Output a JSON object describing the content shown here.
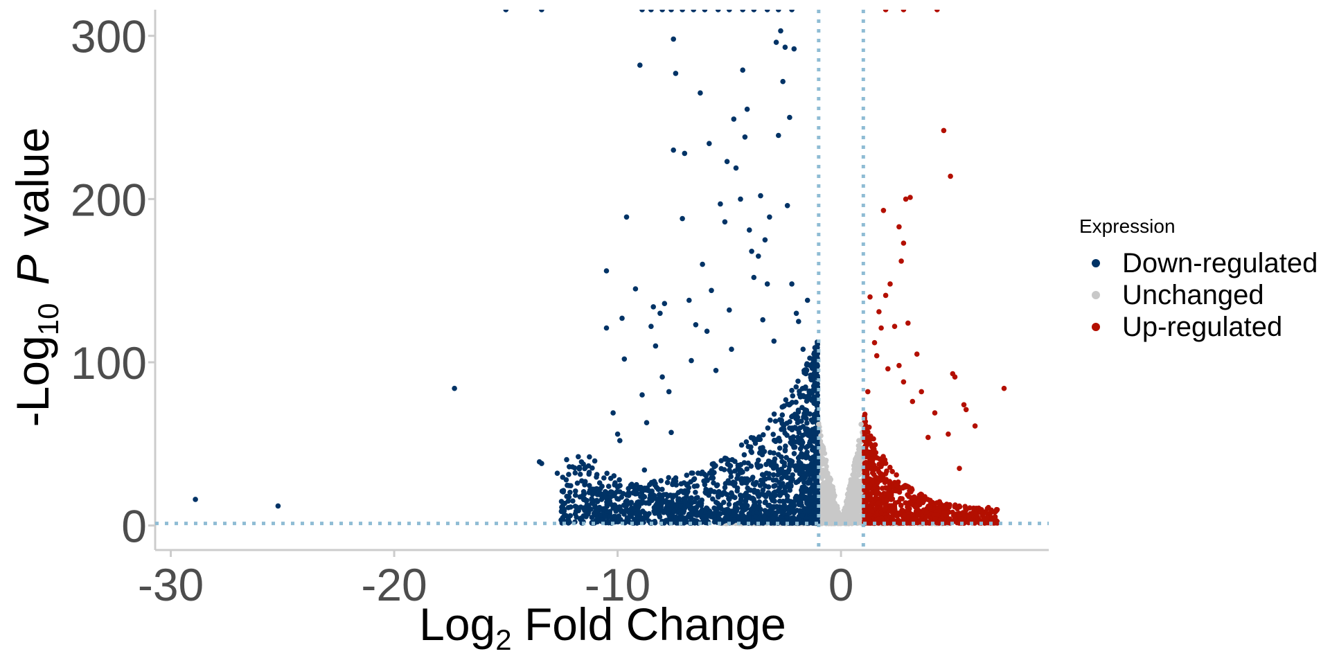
{
  "chart_data": {
    "type": "scatter",
    "title": "",
    "xlabel": "Log2 Fold Change",
    "xlabel_parts": [
      "Log",
      "2",
      " Fold Change"
    ],
    "ylabel": "-Log10 P value",
    "ylabel_parts": [
      "-Log",
      "10",
      "P",
      "value"
    ],
    "xlim": [
      -30.7,
      9.3
    ],
    "ylim": [
      -15,
      316
    ],
    "x_ticks": [
      -30,
      -20,
      -10,
      0
    ],
    "x_tick_labels": [
      "-30",
      "-20",
      "-10",
      "0"
    ],
    "y_ticks": [
      0,
      100,
      200,
      300
    ],
    "y_tick_labels": [
      "0",
      "100",
      "200",
      "300"
    ],
    "grid": false,
    "legend_position": "right",
    "legend": {
      "title": "Expression",
      "entries": [
        "Down-regulated",
        "Unchanged",
        "Up-regulated"
      ]
    },
    "thresholds": {
      "log2fc": [
        -1,
        1
      ],
      "neg_log10_p": 1.3,
      "line_color": "#8fbcd4",
      "line_style": "dotted"
    },
    "colors": {
      "Down-regulated": "#003366",
      "Unchanged": "#c8c8c8",
      "Up-regulated": "#b30f00"
    },
    "series": [
      {
        "name": "Down-regulated",
        "points": [
          [
            -28.9,
            16
          ],
          [
            -25.2,
            12
          ],
          [
            -17.3,
            84
          ],
          [
            -13.5,
            39
          ],
          [
            -13.4,
            38
          ],
          [
            -12.7,
            32
          ],
          [
            -12.3,
            28
          ],
          [
            -11.8,
            26
          ],
          [
            -11.4,
            15
          ],
          [
            -11.2,
            10
          ],
          [
            -10.8,
            20
          ],
          [
            -10.4,
            24
          ],
          [
            -10.2,
            69
          ],
          [
            -10.0,
            56
          ],
          [
            -9.9,
            52
          ],
          [
            -10.5,
            121
          ],
          [
            -10.5,
            156
          ],
          [
            -9.8,
            127
          ],
          [
            -9.7,
            102
          ],
          [
            -9.6,
            189
          ],
          [
            -9.2,
            145
          ],
          [
            -9.0,
            282
          ],
          [
            -8.9,
            80
          ],
          [
            -8.8,
            34
          ],
          [
            -8.7,
            63
          ],
          [
            -8.5,
            122
          ],
          [
            -8.4,
            134
          ],
          [
            -8.3,
            110
          ],
          [
            -8.1,
            130
          ],
          [
            -8.0,
            91
          ],
          [
            -7.9,
            136
          ],
          [
            -7.7,
            82
          ],
          [
            -7.6,
            57
          ],
          [
            -7.5,
            230
          ],
          [
            -7.5,
            298
          ],
          [
            -7.4,
            277
          ],
          [
            -7.1,
            188
          ],
          [
            -7.0,
            228
          ],
          [
            -6.8,
            138
          ],
          [
            -6.7,
            101
          ],
          [
            -6.5,
            123
          ],
          [
            -6.3,
            265
          ],
          [
            -6.2,
            160
          ],
          [
            -6.0,
            119
          ],
          [
            -5.9,
            234
          ],
          [
            -5.8,
            144
          ],
          [
            -5.6,
            95
          ],
          [
            -5.4,
            197
          ],
          [
            -5.2,
            186
          ],
          [
            -5.1,
            223
          ],
          [
            -5.0,
            132
          ],
          [
            -4.9,
            108
          ],
          [
            -4.8,
            249
          ],
          [
            -4.7,
            219
          ],
          [
            -4.5,
            200
          ],
          [
            -4.4,
            279
          ],
          [
            -4.3,
            238
          ],
          [
            -4.2,
            255
          ],
          [
            -4.1,
            181
          ],
          [
            -4.0,
            168
          ],
          [
            -3.9,
            152
          ],
          [
            -3.7,
            165
          ],
          [
            -3.6,
            202
          ],
          [
            -3.5,
            126
          ],
          [
            -3.4,
            175
          ],
          [
            -3.3,
            148
          ],
          [
            -3.2,
            189
          ],
          [
            -3.0,
            113
          ],
          [
            -2.9,
            296
          ],
          [
            -2.8,
            239
          ],
          [
            -2.7,
            303
          ],
          [
            -2.6,
            272
          ],
          [
            -2.5,
            293
          ],
          [
            -2.4,
            196
          ],
          [
            -2.3,
            250
          ],
          [
            -2.2,
            148
          ],
          [
            -2.1,
            292
          ],
          [
            -2.0,
            130
          ],
          [
            -1.9,
            125
          ],
          [
            -1.7,
            108
          ],
          [
            -1.5,
            138
          ],
          [
            -1.3,
            81
          ],
          [
            -15.0,
            316
          ],
          [
            -13.4,
            316
          ],
          [
            -8.9,
            316
          ],
          [
            -8.5,
            316
          ],
          [
            -8.0,
            316
          ],
          [
            -7.6,
            316
          ],
          [
            -7.1,
            316
          ],
          [
            -6.6,
            316
          ],
          [
            -6.1,
            316
          ],
          [
            -5.5,
            316
          ],
          [
            -5.0,
            316
          ],
          [
            -4.4,
            316
          ],
          [
            -3.9,
            316
          ],
          [
            -3.3,
            316
          ],
          [
            -2.8,
            316
          ],
          [
            -2.2,
            316
          ]
        ]
      },
      {
        "name": "Unchanged",
        "points": [
          [
            -1.0,
            62
          ],
          [
            -0.9,
            55
          ],
          [
            -0.8,
            48
          ],
          [
            -0.7,
            40
          ],
          [
            -0.6,
            32
          ],
          [
            -0.5,
            25
          ],
          [
            -0.4,
            18
          ],
          [
            -0.3,
            12
          ],
          [
            -0.2,
            6
          ],
          [
            0.2,
            6
          ],
          [
            0.3,
            12
          ],
          [
            0.4,
            18
          ],
          [
            0.5,
            25
          ],
          [
            0.6,
            33
          ],
          [
            0.7,
            42
          ],
          [
            0.8,
            52
          ],
          [
            0.9,
            62
          ]
        ]
      },
      {
        "name": "Up-regulated",
        "points": [
          [
            1.2,
            82
          ],
          [
            1.3,
            140
          ],
          [
            1.5,
            112
          ],
          [
            1.6,
            104
          ],
          [
            1.7,
            131
          ],
          [
            1.8,
            121
          ],
          [
            1.9,
            193
          ],
          [
            2.0,
            141
          ],
          [
            2.1,
            96
          ],
          [
            2.2,
            148
          ],
          [
            2.4,
            122
          ],
          [
            2.6,
            98
          ],
          [
            2.6,
            183
          ],
          [
            2.7,
            162
          ],
          [
            2.8,
            88
          ],
          [
            2.8,
            173
          ],
          [
            2.9,
            200
          ],
          [
            3.0,
            124
          ],
          [
            3.1,
            201
          ],
          [
            3.2,
            76
          ],
          [
            3.4,
            105
          ],
          [
            3.6,
            82
          ],
          [
            3.9,
            54
          ],
          [
            4.2,
            69
          ],
          [
            4.6,
            242
          ],
          [
            4.8,
            56
          ],
          [
            4.9,
            214
          ],
          [
            5.0,
            93
          ],
          [
            5.1,
            91
          ],
          [
            5.3,
            35
          ],
          [
            5.5,
            74
          ],
          [
            5.6,
            71
          ],
          [
            6.0,
            61
          ],
          [
            6.6,
            11
          ],
          [
            7.3,
            84
          ],
          [
            2.0,
            316
          ],
          [
            2.8,
            316
          ],
          [
            4.3,
            316
          ]
        ]
      }
    ]
  }
}
